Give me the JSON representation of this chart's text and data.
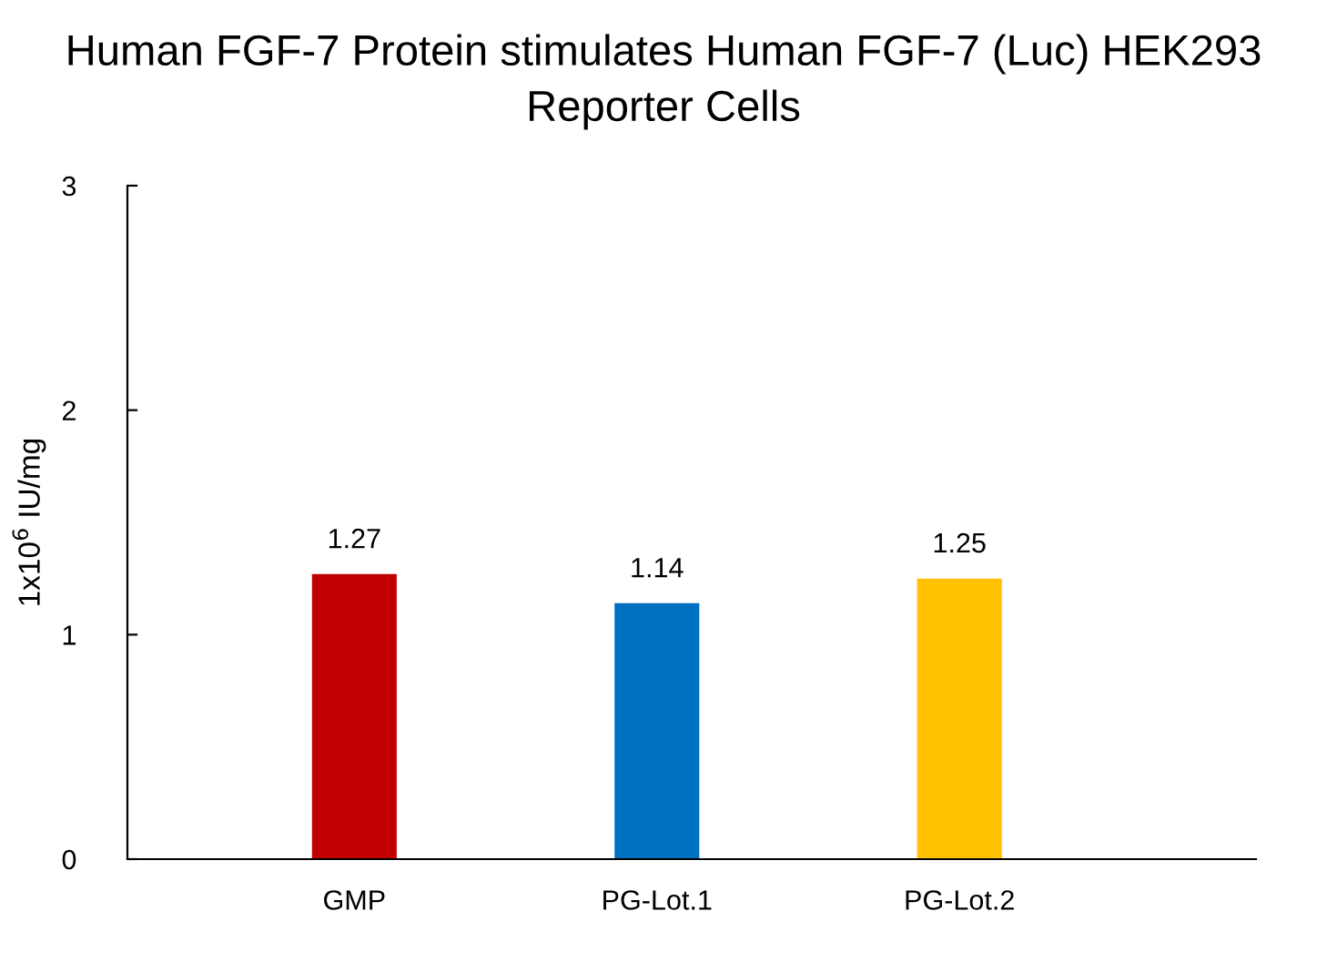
{
  "chart_data": {
    "type": "bar",
    "title": "Human FGF-7 Protein stimulates Human FGF-7 (Luc) HEK293 Reporter Cells",
    "ylabel": "1x10$^{6}$ IU/mg",
    "categories": [
      "GMP",
      "PG-Lot.1",
      "PG-Lot.2"
    ],
    "values": [
      1.27,
      1.14,
      1.25
    ],
    "colors": [
      "#c00000",
      "#0070c0",
      "#ffc000"
    ],
    "ylim": [
      0,
      3
    ],
    "yticks": [
      0,
      1,
      2,
      3
    ],
    "data_labels": true,
    "grid": false,
    "legend": false
  }
}
